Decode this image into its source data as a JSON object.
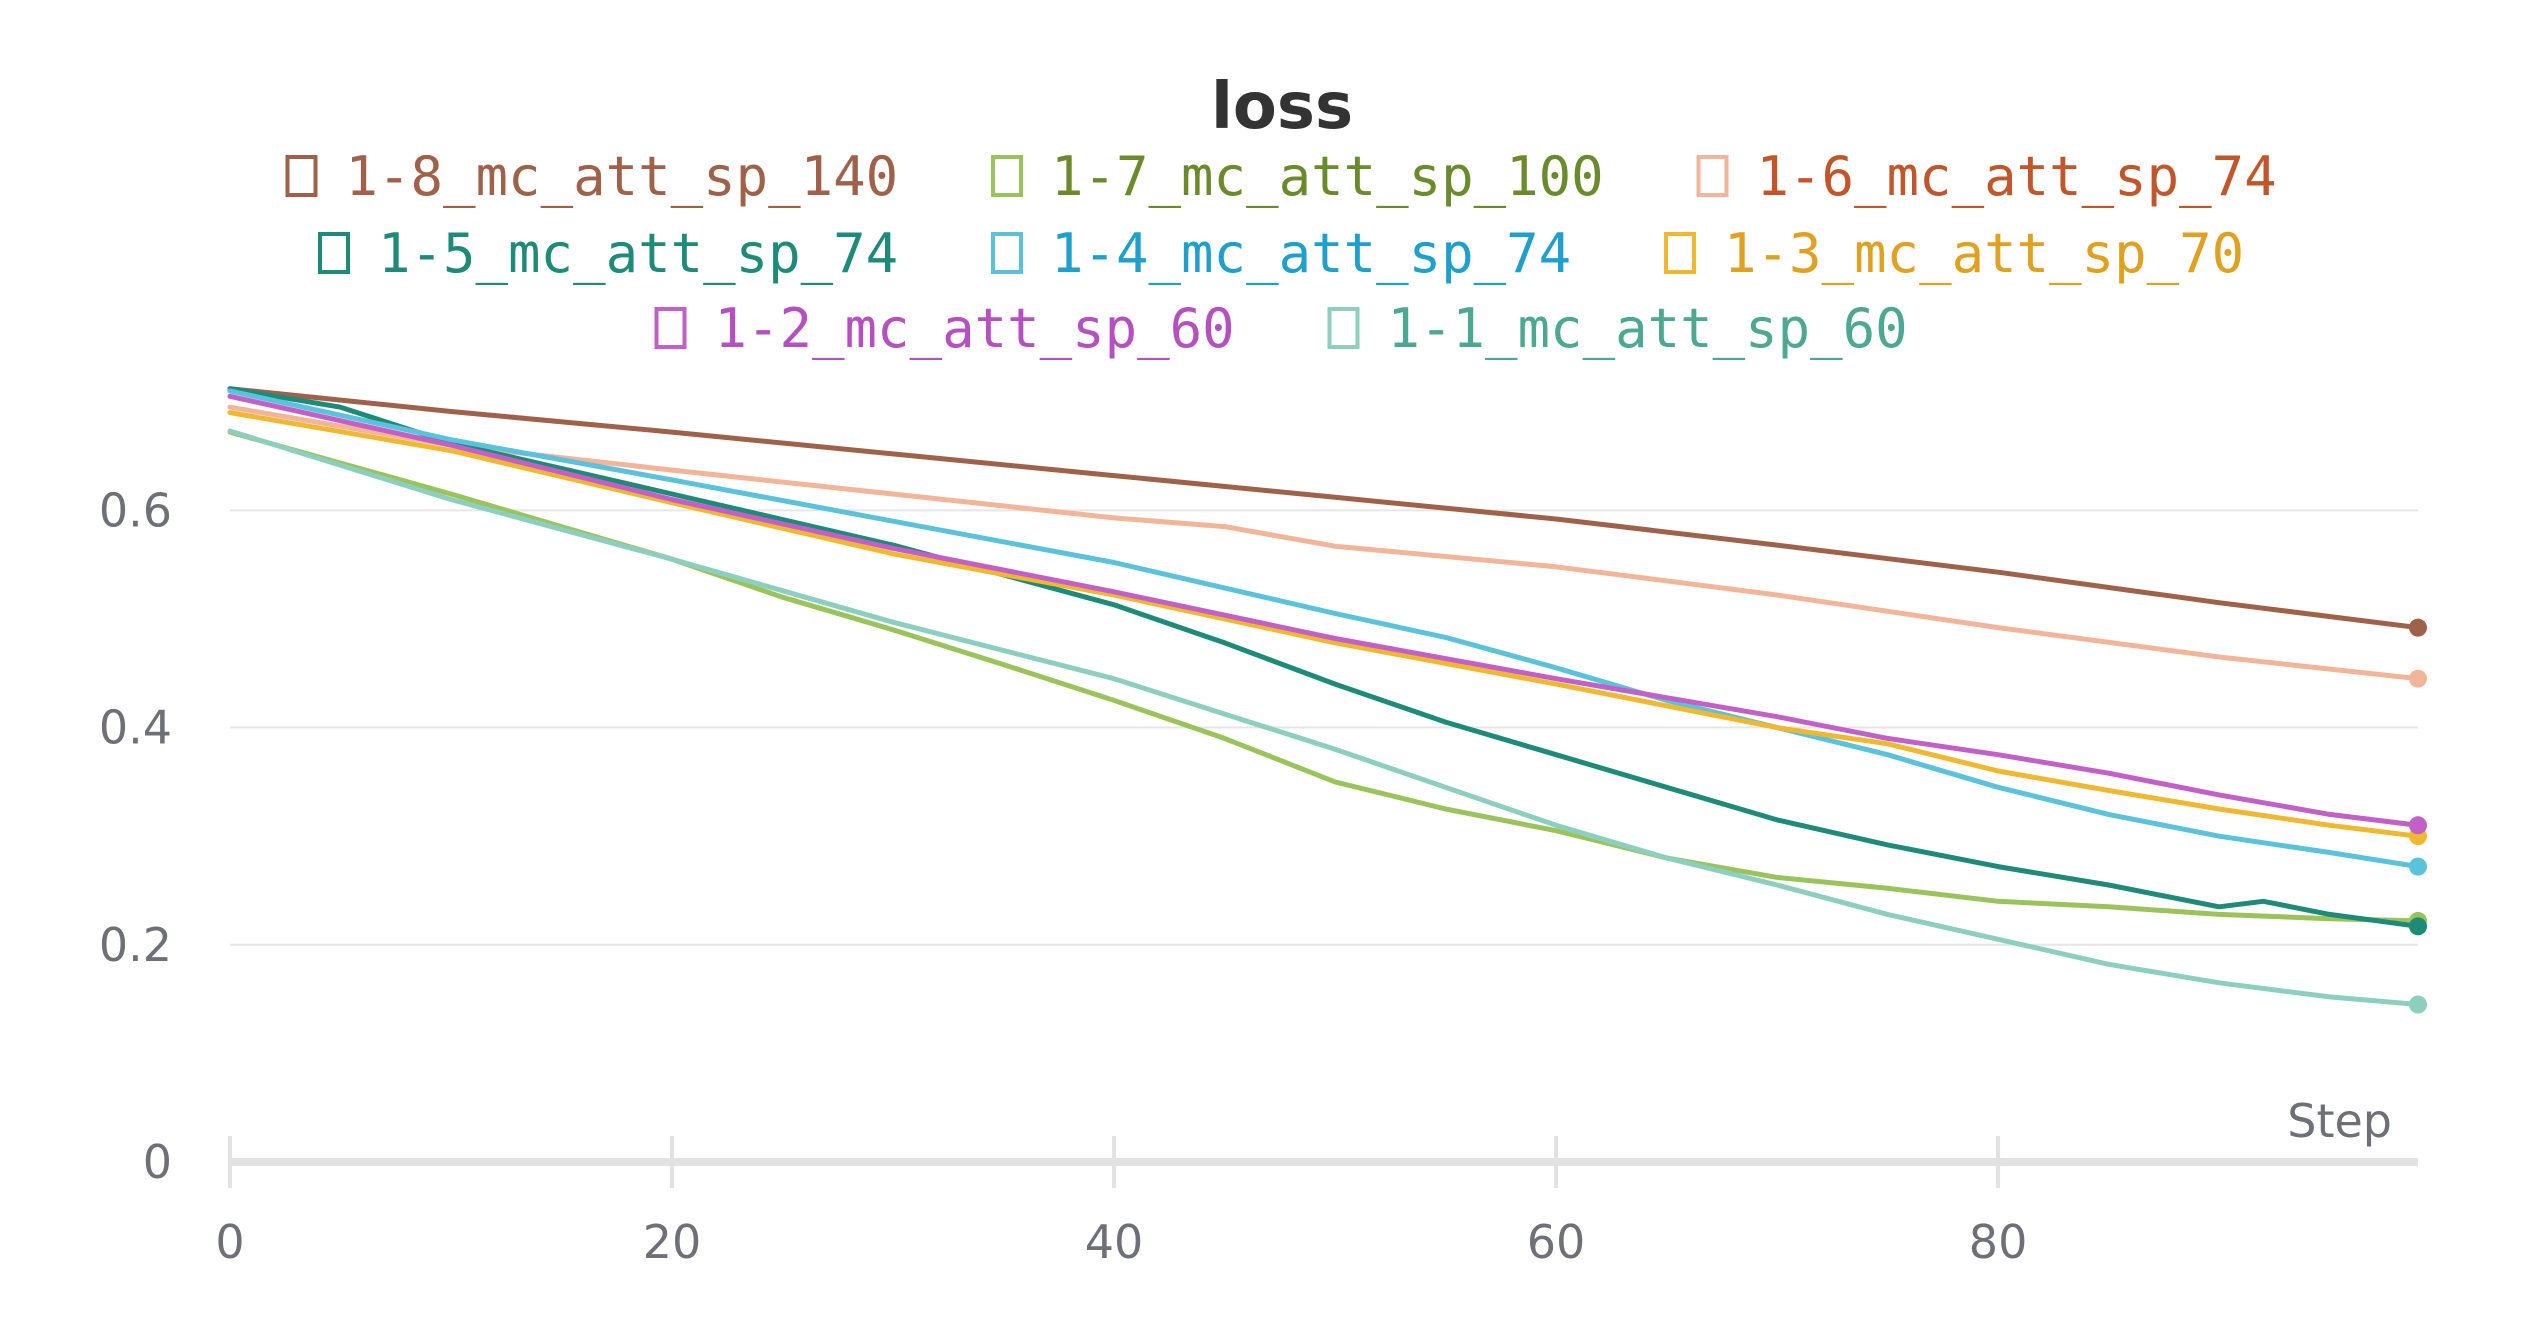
{
  "chart_data": {
    "type": "line",
    "title": "loss",
    "xlabel": "Step",
    "ylabel": "",
    "xlim": [
      0,
      99
    ],
    "ylim": [
      0,
      0.72
    ],
    "x_ticks": [
      0,
      20,
      40,
      60,
      80
    ],
    "y_ticks": [
      0,
      0.2,
      0.4,
      0.6
    ],
    "x_tick_labels": [
      "0",
      "20",
      "40",
      "60",
      "80"
    ],
    "y_tick_labels": [
      "0",
      "0.2",
      "0.4",
      "0.6"
    ],
    "grid": "horizontal",
    "legend_position": "top",
    "series": [
      {
        "name": "1-8_mc_att_sp_140",
        "color": "#a0614a",
        "text_color": "#a0614a",
        "x": [
          0,
          10,
          20,
          30,
          40,
          50,
          60,
          70,
          80,
          90,
          99
        ],
        "y": [
          0.712,
          0.691,
          0.672,
          0.652,
          0.632,
          0.612,
          0.592,
          0.568,
          0.543,
          0.515,
          0.492
        ]
      },
      {
        "name": "1-7_mc_att_sp_100",
        "color": "#9ac45b",
        "text_color": "#6b8a2c",
        "x": [
          0,
          10,
          20,
          25,
          30,
          35,
          40,
          45,
          50,
          55,
          60,
          65,
          70,
          75,
          80,
          85,
          90,
          95,
          99
        ],
        "y": [
          0.672,
          0.615,
          0.555,
          0.52,
          0.49,
          0.458,
          0.425,
          0.39,
          0.35,
          0.325,
          0.305,
          0.28,
          0.262,
          0.252,
          0.24,
          0.235,
          0.228,
          0.224,
          0.222
        ]
      },
      {
        "name": "1-6_mc_att_sp_74",
        "color": "#f2b59a",
        "text_color": "#c0562a",
        "x": [
          0,
          10,
          20,
          30,
          40,
          45,
          50,
          60,
          70,
          80,
          90,
          99
        ],
        "y": [
          0.695,
          0.66,
          0.637,
          0.615,
          0.593,
          0.585,
          0.567,
          0.548,
          0.522,
          0.492,
          0.465,
          0.445
        ]
      },
      {
        "name": "1-5_mc_att_sp_74",
        "color": "#1e8b79",
        "text_color": "#1e8b79",
        "x": [
          0,
          5,
          10,
          20,
          30,
          40,
          45,
          50,
          55,
          60,
          65,
          70,
          75,
          80,
          85,
          90,
          92,
          95,
          99
        ],
        "y": [
          0.712,
          0.695,
          0.662,
          0.615,
          0.568,
          0.513,
          0.478,
          0.44,
          0.405,
          0.375,
          0.345,
          0.315,
          0.292,
          0.272,
          0.255,
          0.235,
          0.24,
          0.228,
          0.217
        ]
      },
      {
        "name": "1-4_mc_att_sp_74",
        "color": "#5bc2dc",
        "text_color": "#1f9fcc",
        "x": [
          0,
          10,
          20,
          30,
          40,
          50,
          55,
          60,
          65,
          70,
          75,
          80,
          85,
          90,
          95,
          99
        ],
        "y": [
          0.71,
          0.665,
          0.628,
          0.59,
          0.552,
          0.505,
          0.483,
          0.455,
          0.425,
          0.4,
          0.375,
          0.345,
          0.32,
          0.3,
          0.285,
          0.272
        ]
      },
      {
        "name": "1-3_mc_att_sp_70",
        "color": "#f0b830",
        "text_color": "#e0a020",
        "x": [
          0,
          10,
          20,
          30,
          40,
          50,
          60,
          70,
          75,
          80,
          85,
          90,
          95,
          99
        ],
        "y": [
          0.69,
          0.655,
          0.607,
          0.56,
          0.522,
          0.478,
          0.44,
          0.4,
          0.385,
          0.36,
          0.342,
          0.325,
          0.31,
          0.3
        ]
      },
      {
        "name": "1-2_mc_att_sp_60",
        "color": "#c260c8",
        "text_color": "#b550c0",
        "x": [
          0,
          10,
          20,
          30,
          40,
          50,
          60,
          70,
          75,
          80,
          85,
          90,
          95,
          99
        ],
        "y": [
          0.705,
          0.66,
          0.61,
          0.565,
          0.525,
          0.482,
          0.445,
          0.41,
          0.39,
          0.375,
          0.358,
          0.338,
          0.32,
          0.31
        ]
      },
      {
        "name": "1-1_mc_att_sp_60",
        "color": "#8dcfbe",
        "text_color": "#4ca891",
        "x": [
          0,
          10,
          20,
          30,
          40,
          50,
          60,
          65,
          70,
          75,
          80,
          85,
          90,
          95,
          99
        ],
        "y": [
          0.673,
          0.61,
          0.555,
          0.497,
          0.445,
          0.38,
          0.31,
          0.28,
          0.255,
          0.228,
          0.205,
          0.182,
          0.165,
          0.152,
          0.145
        ]
      }
    ]
  }
}
